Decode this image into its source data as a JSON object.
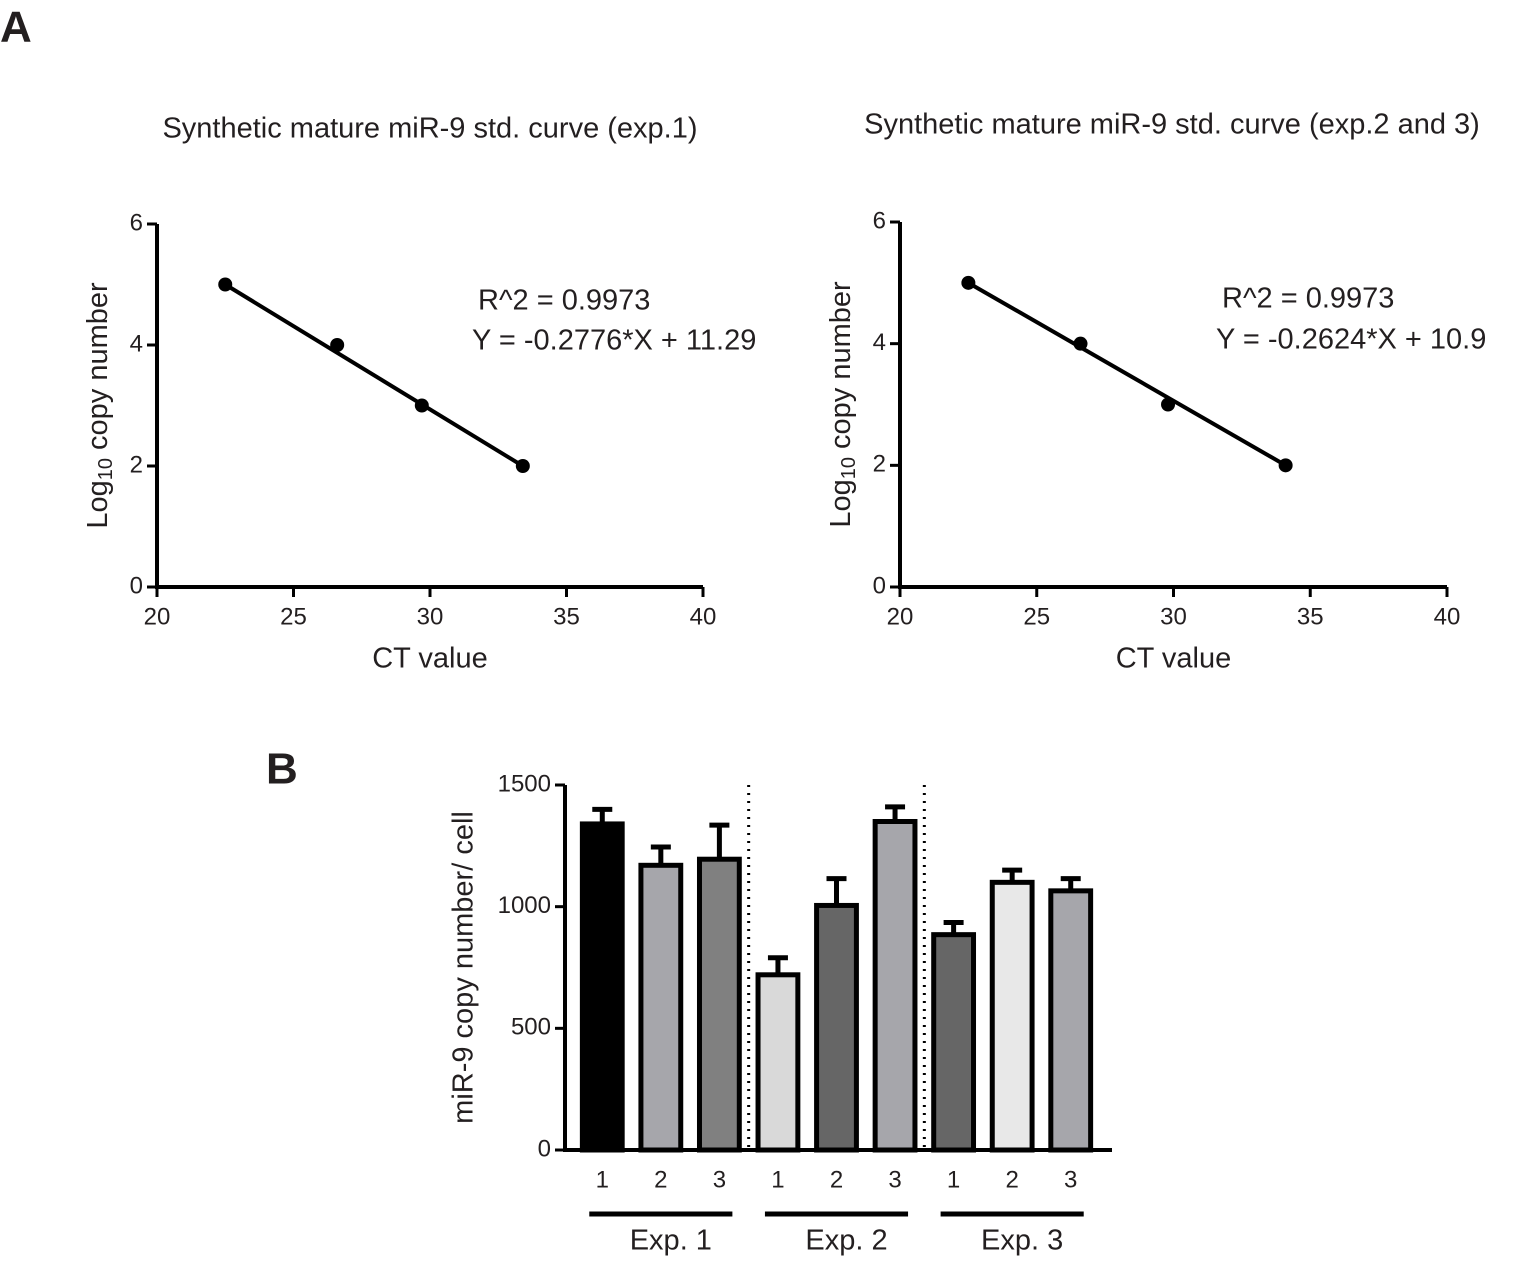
{
  "panels": [
    "A",
    "B"
  ],
  "chart_data": [
    {
      "type": "scatter",
      "title": "Synthetic mature miR-9 std. curve (exp.1)",
      "xlabel": "CT value",
      "ylabel": [
        "Log",
        "10",
        "copy number"
      ],
      "x": [
        22.5,
        26.6,
        29.7,
        33.4
      ],
      "values": [
        5,
        4,
        3,
        2
      ],
      "color": "#000000",
      "xlim": [
        20,
        40
      ],
      "xticks": [
        20,
        25,
        30,
        35,
        40
      ],
      "ylim": [
        0,
        6
      ],
      "yticks": [
        0,
        2,
        4,
        6
      ],
      "annotations": [
        "R^2 = 0.9973",
        "Y = -0.2776*X + 11.29"
      ]
    },
    {
      "type": "scatter",
      "title": "Synthetic mature miR-9 std. curve (exp.2 and 3)",
      "xlabel": "CT value",
      "ylabel": [
        "Log",
        "10",
        "copy number"
      ],
      "x": [
        22.5,
        26.6,
        29.8,
        34.1
      ],
      "values": [
        5,
        4,
        3,
        2
      ],
      "color": "#000000",
      "xlim": [
        20,
        40
      ],
      "xticks": [
        20,
        25,
        30,
        35,
        40
      ],
      "ylim": [
        0,
        6
      ],
      "yticks": [
        0,
        2,
        4,
        6
      ],
      "annotations": [
        "R^2 = 0.9973",
        "Y = -0.2624*X + 10.9"
      ]
    },
    {
      "type": "bar",
      "ylabel": "miR-9 copy number/ cell",
      "categories": [
        "1",
        "2",
        "3",
        "1",
        "2",
        "3",
        "1",
        "2",
        "3"
      ],
      "groups": [
        "Exp. 1",
        "Exp. 2",
        "Exp. 3"
      ],
      "values": [
        1340,
        1170,
        1195,
        720,
        1005,
        1350,
        885,
        1100,
        1065
      ],
      "errors": [
        60,
        75,
        140,
        70,
        110,
        60,
        50,
        50,
        50
      ],
      "colors": [
        "#000000",
        "#a6a6ab",
        "#808080",
        "#d9d9d9",
        "#666666",
        "#a6a6ab",
        "#666666",
        "#e8e8e8",
        "#a6a6ab"
      ],
      "ylim": [
        0,
        1500
      ],
      "yticks": [
        0,
        500,
        1000,
        1500
      ]
    }
  ]
}
